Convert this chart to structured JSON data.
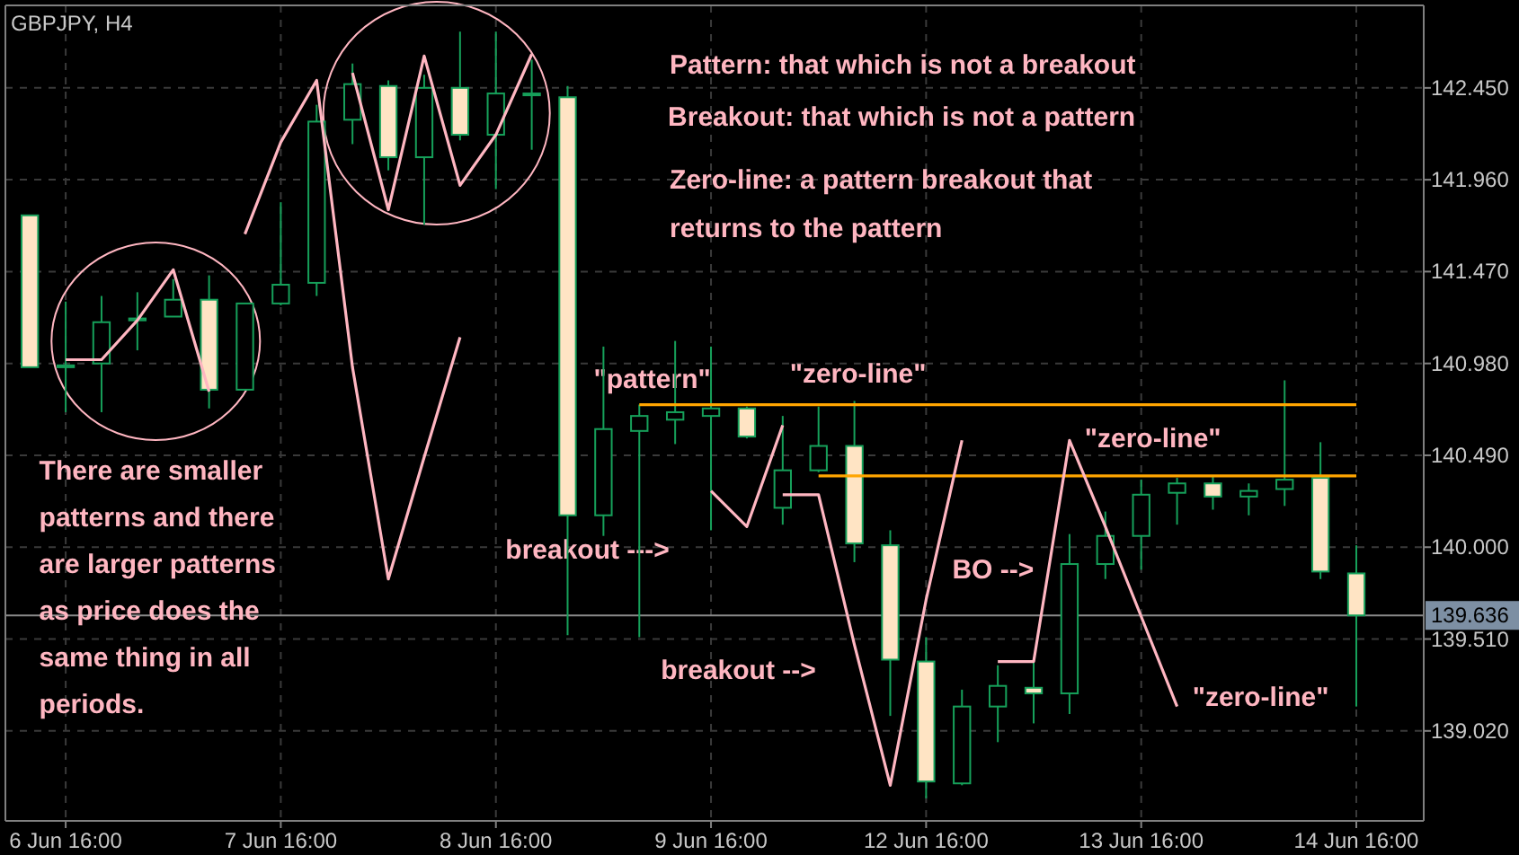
{
  "chart_data": {
    "type": "candlestick",
    "title": "GBPJPY, H4",
    "categories": [
      null,
      "6 Jun 16:00",
      null,
      null,
      null,
      null,
      null,
      "7 Jun 16:00",
      null,
      null,
      null,
      null,
      null,
      "8 Jun 16:00",
      null,
      null,
      null,
      null,
      null,
      "9 Jun 16:00",
      null,
      null,
      null,
      null,
      null,
      "12 Jun 16:00",
      null,
      null,
      null,
      null,
      null,
      "13 Jun 16:00",
      null,
      null,
      null,
      null,
      null,
      "14 Jun 16:00"
    ],
    "ohlc": [
      [
        141.77,
        141.77,
        140.96,
        140.96
      ],
      [
        140.96,
        141.31,
        140.72,
        140.97
      ],
      [
        140.98,
        141.34,
        140.72,
        141.2
      ],
      [
        141.21,
        141.36,
        141.05,
        141.22
      ],
      [
        141.23,
        141.43,
        141.23,
        141.32
      ],
      [
        141.32,
        141.45,
        140.74,
        140.84
      ],
      [
        140.84,
        141.3,
        140.84,
        141.3
      ],
      [
        141.3,
        141.84,
        141.29,
        141.4
      ],
      [
        141.41,
        142.36,
        141.34,
        142.27
      ],
      [
        142.28,
        142.58,
        142.15,
        142.47
      ],
      [
        142.46,
        142.49,
        142.01,
        142.08
      ],
      [
        142.08,
        142.52,
        141.72,
        142.45
      ],
      [
        142.45,
        142.75,
        142.17,
        142.2
      ],
      [
        142.2,
        142.75,
        141.91,
        142.42
      ],
      [
        142.42,
        142.6,
        142.12,
        142.42
      ],
      [
        142.4,
        142.46,
        139.53,
        140.17
      ],
      [
        140.17,
        141.07,
        140.06,
        140.63
      ],
      [
        140.62,
        140.76,
        139.52,
        140.7
      ],
      [
        140.68,
        141.1,
        140.55,
        140.72
      ],
      [
        140.7,
        141.07,
        140.09,
        140.74
      ],
      [
        140.74,
        140.75,
        140.58,
        140.59
      ],
      [
        140.21,
        140.7,
        140.12,
        140.41
      ],
      [
        140.41,
        140.75,
        140.4,
        140.54
      ],
      [
        140.54,
        140.78,
        139.92,
        140.02
      ],
      [
        140.01,
        140.09,
        139.1,
        139.4
      ],
      [
        139.39,
        139.52,
        138.66,
        138.75
      ],
      [
        138.74,
        139.24,
        138.73,
        139.15
      ],
      [
        139.15,
        139.37,
        138.96,
        139.26
      ],
      [
        139.25,
        139.41,
        139.06,
        139.22
      ],
      [
        139.22,
        140.07,
        139.11,
        139.91
      ],
      [
        139.91,
        140.19,
        139.83,
        140.06
      ],
      [
        140.06,
        140.36,
        139.88,
        140.28
      ],
      [
        140.29,
        140.37,
        140.12,
        140.34
      ],
      [
        140.34,
        140.38,
        140.2,
        140.27
      ],
      [
        140.27,
        140.34,
        140.17,
        140.3
      ],
      [
        140.31,
        140.89,
        140.22,
        140.36
      ],
      [
        140.37,
        140.56,
        139.83,
        139.87
      ],
      [
        139.86,
        140.01,
        139.15,
        139.636
      ]
    ],
    "series": [
      {
        "type": "line",
        "color": "#ffa500",
        "values": [
          null,
          null,
          null,
          null,
          null,
          null,
          null,
          null,
          null,
          null,
          null,
          null,
          null,
          null,
          null,
          null,
          null,
          140.76,
          140.76,
          140.76,
          140.76,
          140.76,
          140.76,
          140.76,
          140.76,
          140.76,
          140.76,
          140.76,
          140.76,
          140.76,
          140.76,
          140.76,
          140.76,
          140.76,
          140.76,
          140.76,
          140.76,
          140.76
        ]
      },
      {
        "type": "line",
        "color": "#ffa500",
        "values": [
          null,
          null,
          null,
          null,
          null,
          null,
          null,
          null,
          null,
          null,
          null,
          null,
          null,
          null,
          null,
          null,
          null,
          null,
          null,
          null,
          null,
          null,
          140.38,
          140.38,
          140.38,
          140.38,
          140.38,
          140.38,
          140.38,
          140.38,
          140.38,
          140.38,
          140.38,
          140.38,
          140.38,
          140.38,
          140.38,
          140.38
        ]
      },
      {
        "type": "line",
        "color": "#ffb6c1",
        "values": [
          null,
          141.0,
          141.0,
          141.21,
          141.48,
          140.83,
          null,
          null,
          null,
          null,
          null,
          null,
          null,
          null,
          null,
          null,
          null,
          null,
          null,
          null,
          null,
          null,
          null,
          null,
          null,
          null,
          null,
          null,
          null,
          null,
          null,
          null,
          null,
          null,
          null,
          null,
          null,
          null
        ]
      },
      {
        "type": "line",
        "color": "#ffb6c1",
        "values": [
          null,
          null,
          null,
          null,
          null,
          null,
          141.67,
          142.16,
          142.49,
          140.96,
          139.83,
          140.48,
          141.12,
          null,
          null,
          null,
          null,
          null,
          null,
          null,
          null,
          null,
          null,
          null,
          null,
          null,
          null,
          null,
          null,
          null,
          null,
          null,
          null,
          null,
          null,
          null,
          null,
          null
        ]
      },
      {
        "type": "line",
        "color": "#ffb6c1",
        "values": [
          null,
          null,
          null,
          null,
          null,
          null,
          null,
          null,
          null,
          142.53,
          141.8,
          142.62,
          141.93,
          142.2,
          142.63,
          null,
          null,
          null,
          null,
          null,
          null,
          null,
          null,
          null,
          null,
          null,
          null,
          null,
          null,
          null,
          null,
          null,
          null,
          null,
          null,
          null,
          null,
          null
        ]
      },
      {
        "type": "line",
        "color": "#ffb6c1",
        "values": [
          null,
          null,
          null,
          null,
          null,
          null,
          null,
          null,
          null,
          null,
          null,
          null,
          null,
          null,
          null,
          null,
          null,
          null,
          null,
          140.3,
          140.11,
          140.65,
          null,
          null,
          null,
          null,
          null,
          null,
          null,
          null,
          null,
          null,
          null,
          null,
          null,
          null,
          null,
          null
        ]
      },
      {
        "type": "line",
        "color": "#ffb6c1",
        "values": [
          null,
          null,
          null,
          null,
          null,
          null,
          null,
          null,
          null,
          null,
          null,
          null,
          null,
          null,
          null,
          null,
          null,
          null,
          null,
          null,
          null,
          140.28,
          140.28,
          139.48,
          138.73,
          139.72,
          140.57,
          null,
          null,
          null,
          null,
          null,
          null,
          null,
          null,
          null,
          null,
          null
        ]
      },
      {
        "type": "line",
        "color": "#ffb6c1",
        "values": [
          null,
          null,
          null,
          null,
          null,
          null,
          null,
          null,
          null,
          null,
          null,
          null,
          null,
          null,
          null,
          null,
          null,
          null,
          null,
          null,
          null,
          null,
          null,
          null,
          null,
          null,
          null,
          139.39,
          139.39,
          140.57,
          140.11,
          139.63,
          139.15,
          null,
          null,
          null,
          null,
          null
        ]
      }
    ],
    "ylim": [
      138.54,
      142.89
    ],
    "yticks": [
      {
        "value": 139.02,
        "label": "139.020"
      },
      {
        "value": 139.51,
        "label": "139.510"
      },
      {
        "value": 140.0,
        "label": "140.000"
      },
      {
        "value": 140.49,
        "label": "140.490"
      },
      {
        "value": 140.98,
        "label": "140.980"
      },
      {
        "value": 141.47,
        "label": "141.470"
      },
      {
        "value": 141.96,
        "label": "141.960"
      },
      {
        "value": 142.45,
        "label": "142.450"
      }
    ],
    "grid": true,
    "ref_lines": [
      {
        "axis": "y",
        "value": 139.636,
        "label": "139.636",
        "color": "#8a8a8a"
      }
    ],
    "annotations": [
      "Pattern: that which is not a breakout",
      "Breakout: that which is not a pattern",
      "Zero-line: a pattern breakout that returns to the pattern",
      "There are smaller patterns and there are larger patterns as price does the same thing in all periods.",
      "\"pattern\"",
      "breakout --->",
      "\"zero-line\"",
      "\"zero-line\"",
      "breakout -->",
      "BO -->",
      "\"zero-line\""
    ]
  }
}
